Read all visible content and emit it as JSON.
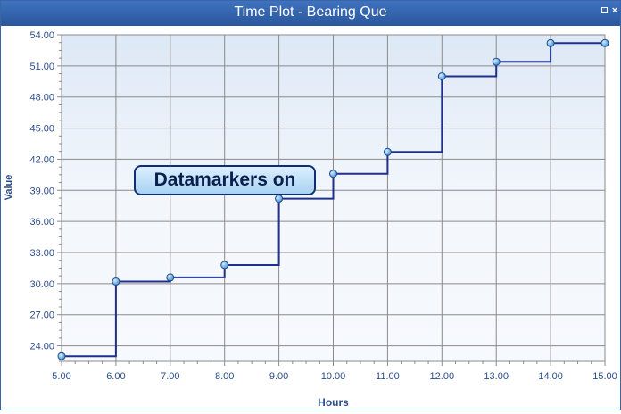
{
  "window": {
    "title": "Time Plot - Bearing Que",
    "restore_label": "restore",
    "close_label": "×"
  },
  "colors": {
    "line": "#1f2f8c",
    "marker": "#5aa7e6",
    "grid": "#8a8a8a",
    "axis_text": "#2a4c8c"
  },
  "chart_data": {
    "type": "line",
    "step": true,
    "markers": true,
    "xlabel": "Hours",
    "ylabel": "Value",
    "xlim": [
      5,
      15
    ],
    "ylim": [
      22.5,
      54
    ],
    "x_ticks": [
      5,
      6,
      7,
      8,
      9,
      10,
      11,
      12,
      13,
      14,
      15
    ],
    "x_tick_labels": [
      "5.00",
      "6.00",
      "7.00",
      "8.00",
      "9.00",
      "10.00",
      "11.00",
      "12.00",
      "13.00",
      "14.00",
      "15.00"
    ],
    "y_ticks": [
      24,
      27,
      30,
      33,
      36,
      39,
      42,
      45,
      48,
      51,
      54
    ],
    "y_tick_labels": [
      "24.00",
      "27.00",
      "30.00",
      "33.00",
      "36.00",
      "39.00",
      "42.00",
      "45.00",
      "48.00",
      "51.00",
      "54.00"
    ],
    "series": [
      {
        "name": "Bearing Que",
        "x": [
          5,
          6,
          7,
          8,
          9,
          10,
          11,
          12,
          13,
          14,
          15
        ],
        "y": [
          23.0,
          30.2,
          30.6,
          31.8,
          38.2,
          40.6,
          42.7,
          50.0,
          51.4,
          53.2,
          53.2
        ]
      }
    ],
    "annotation": {
      "text": "Datamarkers on",
      "x": 9,
      "y": 38.2
    }
  }
}
